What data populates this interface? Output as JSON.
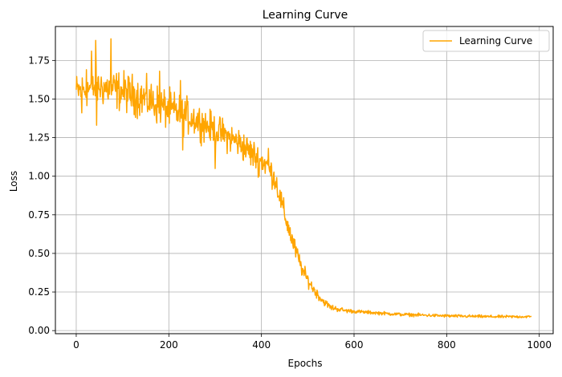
{
  "chart_data": {
    "type": "line",
    "title": "Learning Curve",
    "xlabel": "Epochs",
    "ylabel": "Loss",
    "xlim": [
      -45,
      1030
    ],
    "ylim": [
      -0.02,
      1.97
    ],
    "xticks": [
      0,
      200,
      400,
      600,
      800,
      1000
    ],
    "xtick_labels": [
      "0",
      "200",
      "400",
      "600",
      "800",
      "1000"
    ],
    "yticks": [
      0.0,
      0.25,
      0.5,
      0.75,
      1.0,
      1.25,
      1.5,
      1.75
    ],
    "ytick_labels": [
      "0.00",
      "0.25",
      "0.50",
      "0.75",
      "1.00",
      "1.25",
      "1.50",
      "1.75"
    ],
    "grid": true,
    "legend_position": "top-right",
    "colors": {
      "series": "#ffa500",
      "grid": "#b0b0b0"
    },
    "series": [
      {
        "name": "Learning Curve",
        "x_start": 0,
        "x_end": 983,
        "points": 984,
        "envelope": {
          "x": [
            0,
            50,
            100,
            150,
            200,
            250,
            300,
            350,
            390,
            410,
            430,
            450,
            470,
            490,
            510,
            530,
            550,
            580,
            620,
            700,
            800,
            900,
            983
          ],
          "y": [
            1.55,
            1.58,
            1.55,
            1.5,
            1.43,
            1.38,
            1.3,
            1.22,
            1.12,
            1.08,
            0.98,
            0.75,
            0.55,
            0.38,
            0.28,
            0.2,
            0.15,
            0.13,
            0.12,
            0.105,
            0.095,
            0.09,
            0.09
          ]
        },
        "noise": {
          "x": [
            0,
            100,
            200,
            300,
            380,
            420,
            460,
            500,
            540,
            600,
            983
          ],
          "amplitude": [
            0.08,
            0.09,
            0.09,
            0.07,
            0.07,
            0.06,
            0.05,
            0.03,
            0.015,
            0.008,
            0.006
          ]
        },
        "spikes": [
          {
            "x": 22,
            "y": 1.69
          },
          {
            "x": 33,
            "y": 1.81
          },
          {
            "x": 42,
            "y": 1.88
          },
          {
            "x": 44,
            "y": 1.33
          },
          {
            "x": 75,
            "y": 1.89
          },
          {
            "x": 12,
            "y": 1.41
          },
          {
            "x": 180,
            "y": 1.68
          },
          {
            "x": 225,
            "y": 1.62
          },
          {
            "x": 230,
            "y": 1.17
          },
          {
            "x": 300,
            "y": 1.05
          },
          {
            "x": 395,
            "y": 1.0
          },
          {
            "x": 415,
            "y": 1.18
          }
        ]
      }
    ]
  }
}
